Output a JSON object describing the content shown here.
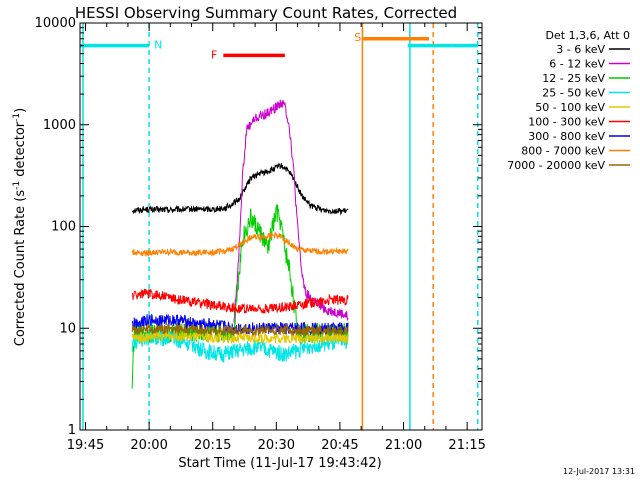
{
  "chart_data": {
    "type": "line",
    "title": "HESSI Observing Summary Count Rates, Corrected",
    "xlabel": "Start Time (11-Jul-17 19:43:42)",
    "ylabel_pre": "Corrected Count Rate (s",
    "ylabel_sup1": "-1",
    "ylabel_mid": " detector",
    "ylabel_sup2": "-1",
    "ylabel_post": ")",
    "xlim_min": [
      -1.3,
      93.5
    ],
    "ylim": [
      1,
      10000
    ],
    "y_scale": "log",
    "x_ticks": [
      {
        "min": 0,
        "label": "19:45"
      },
      {
        "min": 15,
        "label": "20:00"
      },
      {
        "min": 30,
        "label": "20:15"
      },
      {
        "min": 45,
        "label": "20:30"
      },
      {
        "min": 60,
        "label": "20:45"
      },
      {
        "min": 75,
        "label": "21:00"
      },
      {
        "min": 90,
        "label": "21:15"
      }
    ],
    "y_ticks": [
      {
        "value": 1,
        "label": "1"
      },
      {
        "value": 10,
        "label": "10"
      },
      {
        "value": 100,
        "label": "100"
      },
      {
        "value": 1000,
        "label": "1000"
      },
      {
        "value": 10000,
        "label": "10000"
      }
    ],
    "legend_title": "Det 1,3,6, Att 0",
    "legend_placement": "right",
    "series": [
      {
        "name": "3 - 6 keV",
        "color": "#000000",
        "points": [
          [
            11,
            145
          ],
          [
            14,
            147
          ],
          [
            20,
            146
          ],
          [
            25,
            148
          ],
          [
            30,
            148
          ],
          [
            33,
            152
          ],
          [
            36,
            180
          ],
          [
            39,
            300
          ],
          [
            41,
            330
          ],
          [
            44,
            360
          ],
          [
            46,
            395
          ],
          [
            47,
            380
          ],
          [
            49,
            300
          ],
          [
            51,
            200
          ],
          [
            53,
            160
          ],
          [
            56,
            145
          ],
          [
            60,
            142
          ],
          [
            62,
            141
          ]
        ]
      },
      {
        "name": "6 - 12 keV",
        "color": "#cc00cc",
        "points": [
          [
            35,
            12
          ],
          [
            36,
            40
          ],
          [
            37,
            300
          ],
          [
            38,
            900
          ],
          [
            40,
            1150
          ],
          [
            43,
            1300
          ],
          [
            45,
            1500
          ],
          [
            46,
            1650
          ],
          [
            47,
            1550
          ],
          [
            48,
            1000
          ],
          [
            49,
            400
          ],
          [
            50,
            100
          ],
          [
            51,
            35
          ],
          [
            52,
            22
          ],
          [
            54,
            18
          ],
          [
            57,
            15
          ],
          [
            60,
            14
          ],
          [
            62,
            13
          ]
        ]
      },
      {
        "name": "12 - 25 keV",
        "color": "#00cc00",
        "points": [
          [
            11,
            3
          ],
          [
            11.5,
            9
          ],
          [
            14,
            9
          ],
          [
            20,
            9
          ],
          [
            25,
            9
          ],
          [
            30,
            9
          ],
          [
            35,
            9
          ],
          [
            36,
            30
          ],
          [
            37,
            75
          ],
          [
            39,
            120
          ],
          [
            41,
            90
          ],
          [
            43,
            60
          ],
          [
            45,
            140
          ],
          [
            46,
            110
          ],
          [
            47,
            60
          ],
          [
            48,
            40
          ],
          [
            49,
            20
          ],
          [
            50,
            9
          ],
          [
            55,
            9
          ],
          [
            62,
            9
          ]
        ]
      },
      {
        "name": "25 - 50 keV",
        "color": "#00e5e5",
        "points": [
          [
            11,
            7
          ],
          [
            14,
            8
          ],
          [
            20,
            8
          ],
          [
            25,
            7
          ],
          [
            28,
            6
          ],
          [
            32,
            5.5
          ],
          [
            36,
            6
          ],
          [
            40,
            6.5
          ],
          [
            44,
            6
          ],
          [
            47,
            5.5
          ],
          [
            50,
            6
          ],
          [
            54,
            7
          ],
          [
            58,
            7
          ],
          [
            62,
            7.5
          ]
        ]
      },
      {
        "name": "50 - 100 keV",
        "color": "#e5c800",
        "points": [
          [
            11,
            8
          ],
          [
            20,
            8.5
          ],
          [
            30,
            8
          ],
          [
            40,
            8
          ],
          [
            50,
            8
          ],
          [
            62,
            8
          ]
        ]
      },
      {
        "name": "100 - 300 keV",
        "color": "#ff0000",
        "points": [
          [
            11,
            21
          ],
          [
            14,
            22
          ],
          [
            18,
            21
          ],
          [
            22,
            19
          ],
          [
            26,
            18
          ],
          [
            30,
            17
          ],
          [
            34,
            16
          ],
          [
            38,
            15.5
          ],
          [
            42,
            15.5
          ],
          [
            46,
            16
          ],
          [
            50,
            17
          ],
          [
            54,
            18
          ],
          [
            58,
            19
          ],
          [
            62,
            19
          ]
        ]
      },
      {
        "name": "300 - 800 keV",
        "color": "#0000ee",
        "points": [
          [
            11,
            11
          ],
          [
            14,
            12
          ],
          [
            18,
            12
          ],
          [
            22,
            12
          ],
          [
            26,
            11
          ],
          [
            30,
            11
          ],
          [
            34,
            10
          ],
          [
            38,
            10
          ],
          [
            42,
            10
          ],
          [
            46,
            10
          ],
          [
            50,
            10
          ],
          [
            54,
            10
          ],
          [
            58,
            10
          ],
          [
            62,
            10
          ]
        ]
      },
      {
        "name": "800 - 7000 keV",
        "color": "#ff8000",
        "points": [
          [
            11,
            56
          ],
          [
            14,
            55
          ],
          [
            20,
            56
          ],
          [
            25,
            55
          ],
          [
            30,
            56
          ],
          [
            34,
            58
          ],
          [
            36,
            65
          ],
          [
            39,
            78
          ],
          [
            42,
            80
          ],
          [
            45,
            82
          ],
          [
            46,
            80
          ],
          [
            48,
            68
          ],
          [
            50,
            60
          ],
          [
            53,
            57
          ],
          [
            56,
            57
          ],
          [
            60,
            57
          ],
          [
            62,
            57
          ]
        ]
      },
      {
        "name": "7000 - 20000 keV",
        "color": "#996600",
        "points": [
          [
            11,
            9.5
          ],
          [
            20,
            10
          ],
          [
            30,
            9.5
          ],
          [
            40,
            9.5
          ],
          [
            50,
            9.5
          ],
          [
            62,
            9.5
          ]
        ]
      }
    ],
    "segment_bars": [
      {
        "label": "N",
        "color": "#00e5e5",
        "x_range": [
          -1.3,
          15
        ],
        "y": 6000
      },
      {
        "label": "F",
        "color": "#ff0000",
        "x_range": [
          32.5,
          47
        ],
        "y": 4800
      },
      {
        "label": "S",
        "color": "#ff8000",
        "x_range": [
          65.5,
          81
        ],
        "y": 7000
      },
      {
        "label": "",
        "color": "#00e5e5",
        "x_range": [
          76,
          86.5
        ],
        "y": 6000
      },
      {
        "label": "",
        "color": "#00e5e5",
        "x_range": [
          86.5,
          92.5
        ],
        "y": 6000
      }
    ],
    "markers": [
      {
        "x": -0.6,
        "color": "#00e5e5",
        "dashed": false
      },
      {
        "x": 15,
        "color": "#00e5e5",
        "dashed": true
      },
      {
        "x": 65.3,
        "color": "#ff8000",
        "dashed": false
      },
      {
        "x": 76.5,
        "color": "#00e5e5",
        "dashed": false
      },
      {
        "x": 82,
        "color": "#ff8000",
        "dashed": true
      },
      {
        "x": 92.5,
        "color": "#00e5e5",
        "dashed": true
      }
    ],
    "grid": false
  },
  "footer": {
    "timestamp": "12-Jul-2017 13:31"
  }
}
